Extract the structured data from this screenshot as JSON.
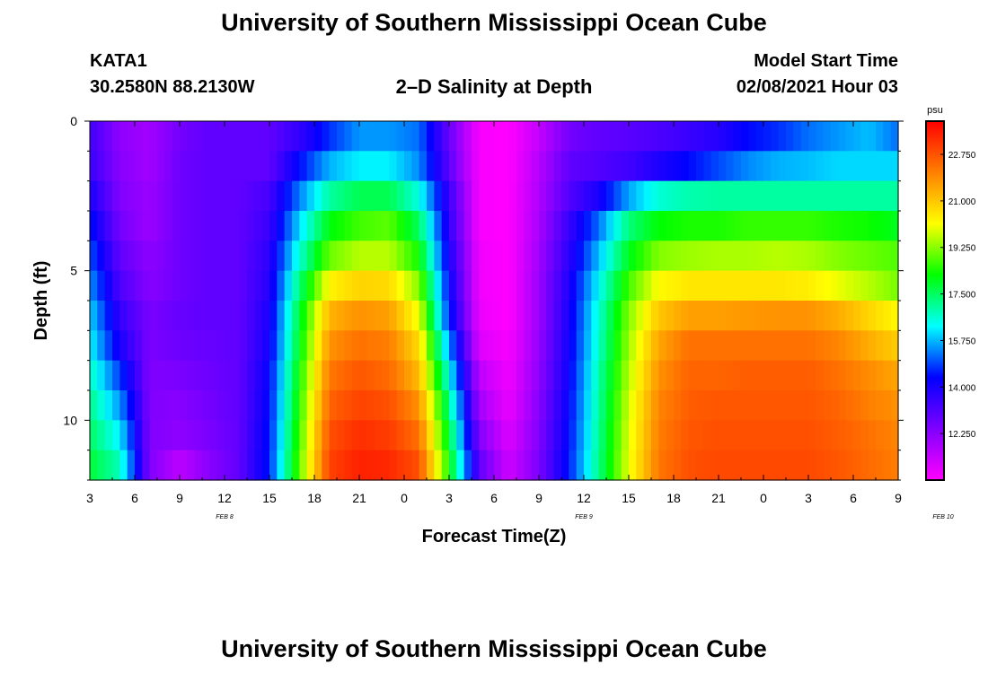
{
  "header": {
    "title": "University of Southern Mississippi Ocean Cube",
    "station_id": "KATA1",
    "station_coords": "30.2580N 88.2130W",
    "plot_title": "2–D Salinity at Depth",
    "model_label": "Model Start Time",
    "model_time": "02/08/2021 Hour 03"
  },
  "footer": {
    "title": "University of Southern Mississippi Ocean Cube"
  },
  "chart_data": {
    "type": "heatmap",
    "title": "2–D Salinity at Depth",
    "xlabel": "Forecast Time(Z)",
    "ylabel": "Depth (ft)",
    "x_tick_labels": [
      "3",
      "6",
      "9",
      "12",
      "15",
      "18",
      "21",
      "0",
      "3",
      "6",
      "9",
      "12",
      "15",
      "18",
      "21",
      "0",
      "3",
      "6",
      "9"
    ],
    "x_range_hours_since_start": [
      0,
      54
    ],
    "date_labels": [
      {
        "label": "FEB 8",
        "hour": 9
      },
      {
        "label": "FEB 9",
        "hour": 33
      },
      {
        "label": "FEB 10",
        "hour": 57
      }
    ],
    "y_tick_labels": [
      "0",
      "5",
      "10"
    ],
    "y_ticks_ft": [
      0,
      5,
      10
    ],
    "ylim_ft": [
      0,
      12
    ],
    "depth_levels_ft": [
      0.5,
      1.5,
      2.5,
      3.5,
      4.5,
      5.5,
      6.5,
      7.5,
      8.5,
      9.5,
      10.5,
      11.5
    ],
    "hours": [
      0,
      2,
      4,
      6,
      8,
      10,
      12,
      14,
      16,
      18,
      20,
      22,
      24,
      26,
      28,
      30,
      32,
      34,
      36,
      38,
      40,
      42,
      44,
      46,
      48,
      50,
      52,
      54
    ],
    "colorbar": {
      "unit": "psu",
      "tick_labels": [
        "22.750",
        "21.000",
        "19.250",
        "17.500",
        "15.750",
        "14.000",
        "12.250"
      ],
      "ticks": [
        22.75,
        21.0,
        19.25,
        17.5,
        15.75,
        14.0,
        12.25
      ],
      "range": [
        10.5,
        24.0
      ],
      "colors": [
        "#ff00ff",
        "#7f00ff",
        "#0000ff",
        "#00ffff",
        "#00ff00",
        "#ffff00",
        "#ff8000",
        "#ff0000"
      ]
    },
    "salinity_rows_psu": [
      [
        13.4,
        12.2,
        11.9,
        12.6,
        12.9,
        12.9,
        12.9,
        13.6,
        14.7,
        15.5,
        15.5,
        15.2,
        12.8,
        10.6,
        10.5,
        11.4,
        12.6,
        12.9,
        13.0,
        13.2,
        13.5,
        13.8,
        14.4,
        14.7,
        15.2,
        15.5,
        15.8,
        15.2
      ],
      [
        13.5,
        12.3,
        11.9,
        12.7,
        12.9,
        12.9,
        12.9,
        14.4,
        15.7,
        16.2,
        16.2,
        15.4,
        13.0,
        10.6,
        10.5,
        11.6,
        12.9,
        13.1,
        13.4,
        13.9,
        14.4,
        14.9,
        15.4,
        15.7,
        15.8,
        16.0,
        16.0,
        16.0
      ],
      [
        14.0,
        12.4,
        12.0,
        12.7,
        12.9,
        12.9,
        13.3,
        15.3,
        17.0,
        17.6,
        17.6,
        16.5,
        13.5,
        10.6,
        10.5,
        11.7,
        13.1,
        14.0,
        15.6,
        16.6,
        16.9,
        17.0,
        17.0,
        17.0,
        17.0,
        17.0,
        17.0,
        17.0
      ],
      [
        14.5,
        12.6,
        12.0,
        12.7,
        12.9,
        12.9,
        13.5,
        16.0,
        18.1,
        18.7,
        18.9,
        17.5,
        13.7,
        10.6,
        10.5,
        11.8,
        13.5,
        15.2,
        17.3,
        18.2,
        18.4,
        18.4,
        18.6,
        18.6,
        18.6,
        18.4,
        18.3,
        18.0
      ],
      [
        15.0,
        12.9,
        12.2,
        12.7,
        12.9,
        12.9,
        13.7,
        16.6,
        19.0,
        19.6,
        19.6,
        18.3,
        14.0,
        10.7,
        10.5,
        11.9,
        13.7,
        15.8,
        18.0,
        19.2,
        19.4,
        19.5,
        19.5,
        19.6,
        19.5,
        19.2,
        19.0,
        18.8
      ],
      [
        15.5,
        13.2,
        12.3,
        12.7,
        12.9,
        12.9,
        13.8,
        17.3,
        20.3,
        20.8,
        20.7,
        19.2,
        14.3,
        10.7,
        10.5,
        12.0,
        13.9,
        16.3,
        18.7,
        20.2,
        20.5,
        20.5,
        20.5,
        20.5,
        20.4,
        20.0,
        19.6,
        19.1
      ],
      [
        16.0,
        13.6,
        12.5,
        12.8,
        12.9,
        12.9,
        14.0,
        17.8,
        21.3,
        21.8,
        21.6,
        20.0,
        14.6,
        10.8,
        10.5,
        12.0,
        14.0,
        16.6,
        19.2,
        21.0,
        21.6,
        21.6,
        21.7,
        21.8,
        21.8,
        21.4,
        20.8,
        20.2
      ],
      [
        16.3,
        14.0,
        12.5,
        12.7,
        12.8,
        12.9,
        14.1,
        18.0,
        21.8,
        22.3,
        22.1,
        20.7,
        15.5,
        11.0,
        10.6,
        12.1,
        14.1,
        16.7,
        19.4,
        21.5,
        22.3,
        22.3,
        22.3,
        22.3,
        22.3,
        22.0,
        21.4,
        20.9
      ],
      [
        16.8,
        14.8,
        12.4,
        12.5,
        12.7,
        12.9,
        14.3,
        18.3,
        22.2,
        22.7,
        22.4,
        21.2,
        16.4,
        11.5,
        10.7,
        12.2,
        14.2,
        16.9,
        19.6,
        21.8,
        22.5,
        22.5,
        22.6,
        22.6,
        22.6,
        22.3,
        21.9,
        21.5
      ],
      [
        17.2,
        15.5,
        12.4,
        12.3,
        12.6,
        12.9,
        14.4,
        18.5,
        22.5,
        23.0,
        22.8,
        21.8,
        17.2,
        11.9,
        10.8,
        12.3,
        14.3,
        17.0,
        19.8,
        22.0,
        22.6,
        22.7,
        22.7,
        22.7,
        22.7,
        22.5,
        22.1,
        21.8
      ],
      [
        17.5,
        16.2,
        12.4,
        12.2,
        12.5,
        12.9,
        14.5,
        18.7,
        22.8,
        23.3,
        23.1,
        22.3,
        17.8,
        12.4,
        11.0,
        12.4,
        14.4,
        17.1,
        19.9,
        22.1,
        22.7,
        22.8,
        22.8,
        22.8,
        22.8,
        22.6,
        22.3,
        22.0
      ],
      [
        17.8,
        16.8,
        12.4,
        11.5,
        12.3,
        12.9,
        14.6,
        18.9,
        23.0,
        23.5,
        23.4,
        22.8,
        18.3,
        12.9,
        11.2,
        12.5,
        14.5,
        17.2,
        20.0,
        22.2,
        22.8,
        22.9,
        22.9,
        22.9,
        22.9,
        22.7,
        22.4,
        22.1
      ]
    ]
  }
}
